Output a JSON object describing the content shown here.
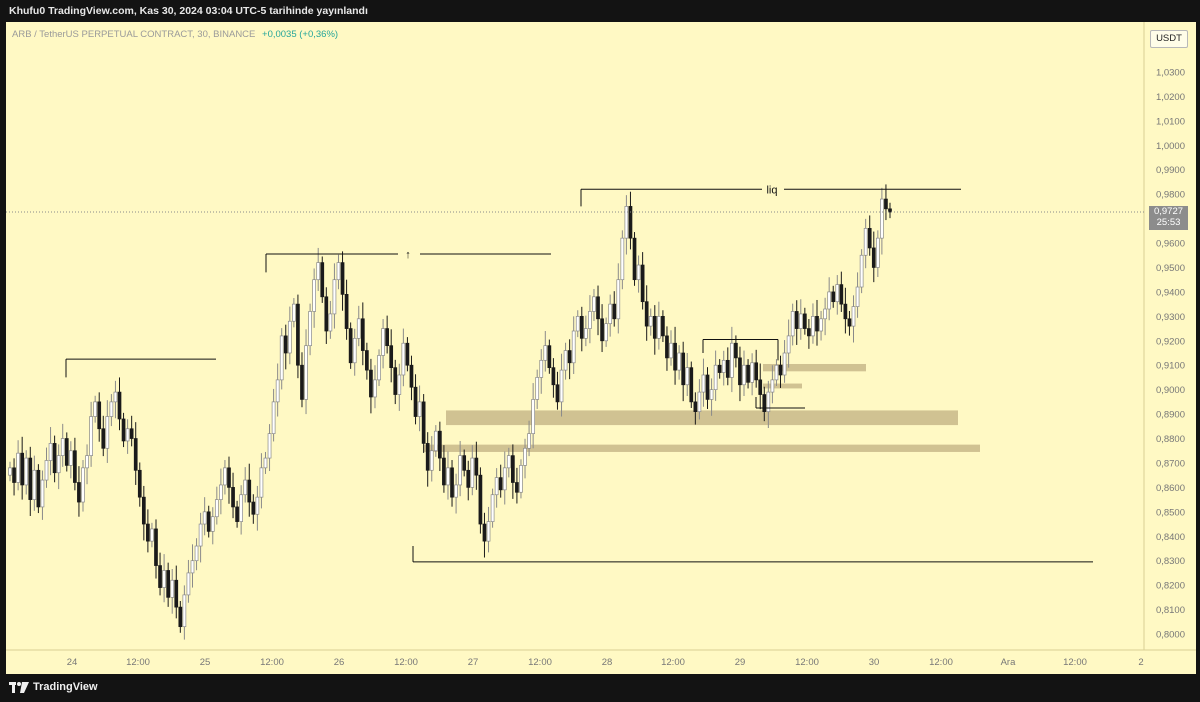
{
  "header": {
    "publish_text": "Khufu0 TradingView.com, Kas 30, 2024 03:04 UTC-5 tarihinde yayınlandı"
  },
  "symbol": {
    "title": "ARB / TetherUS PERPETUAL CONTRACT, 30, BINANCE",
    "change": "+0,0035 (+0,36%)"
  },
  "currency_button": "USDT",
  "last_price": {
    "value": "0,9727",
    "countdown": "25:53"
  },
  "annotations": {
    "liq_label": "liq",
    "arrow_label": "↑"
  },
  "price_axis": {
    "labels": [
      "1,0300",
      "1,0200",
      "1,0100",
      "1,0000",
      "0,9900",
      "0,9800",
      "0,9700",
      "0,9600",
      "0,9500",
      "0,9400",
      "0,9300",
      "0,9200",
      "0,9100",
      "0,9000",
      "0,8900",
      "0,8800",
      "0,8700",
      "0,8600",
      "0,8500",
      "0,8400",
      "0,8300",
      "0,8200",
      "0,8100",
      "0,8000"
    ]
  },
  "time_axis": {
    "labels": [
      "24",
      "12:00",
      "25",
      "12:00",
      "26",
      "12:00",
      "27",
      "12:00",
      "28",
      "12:00",
      "29",
      "12:00",
      "30",
      "12:00",
      "Ara",
      "12:00",
      "2"
    ]
  },
  "footer": {
    "brand": "TradingView"
  },
  "colors": {
    "background": "#fff9c4",
    "candle": "#1a1a1a",
    "wick_light": "#8a8a8a",
    "zone": "#c8b98a",
    "level_line": "#111111",
    "change_green": "#26a69a",
    "price_tag": "#8c8c8c"
  },
  "chart_data": {
    "type": "candlestick",
    "symbol": "ARB / TetherUS PERPETUAL CONTRACT",
    "interval": "30",
    "exchange": "BINANCE",
    "ylim": [
      0.795,
      1.035
    ],
    "last_price": 0.9727,
    "levels": [
      {
        "label": "",
        "price": 0.9125
      },
      {
        "label": "↑",
        "price": 0.9555
      },
      {
        "label": "liq",
        "price": 0.982
      },
      {
        "label": "",
        "price": 0.9205
      },
      {
        "label": "",
        "price": 0.8925
      },
      {
        "label": "",
        "price": 0.8295
      }
    ],
    "zones": [
      {
        "from": 0.8855,
        "to": 0.8915
      },
      {
        "from": 0.8745,
        "to": 0.8775
      },
      {
        "from": 0.9075,
        "to": 0.9105
      },
      {
        "from": 0.9005,
        "to": 0.9025
      }
    ],
    "closes": [
      0.868,
      0.862,
      0.874,
      0.861,
      0.872,
      0.855,
      0.867,
      0.852,
      0.863,
      0.871,
      0.878,
      0.866,
      0.873,
      0.88,
      0.869,
      0.875,
      0.862,
      0.854,
      0.868,
      0.873,
      0.889,
      0.895,
      0.884,
      0.876,
      0.889,
      0.895,
      0.899,
      0.888,
      0.879,
      0.884,
      0.88,
      0.867,
      0.856,
      0.845,
      0.838,
      0.843,
      0.828,
      0.819,
      0.826,
      0.815,
      0.822,
      0.811,
      0.803,
      0.816,
      0.825,
      0.83,
      0.836,
      0.845,
      0.85,
      0.842,
      0.848,
      0.855,
      0.861,
      0.868,
      0.86,
      0.852,
      0.846,
      0.857,
      0.863,
      0.854,
      0.849,
      0.856,
      0.868,
      0.872,
      0.882,
      0.895,
      0.904,
      0.922,
      0.915,
      0.928,
      0.935,
      0.91,
      0.896,
      0.918,
      0.932,
      0.945,
      0.952,
      0.938,
      0.924,
      0.931,
      0.945,
      0.952,
      0.939,
      0.925,
      0.911,
      0.921,
      0.929,
      0.916,
      0.908,
      0.897,
      0.904,
      0.914,
      0.925,
      0.918,
      0.909,
      0.898,
      0.906,
      0.919,
      0.91,
      0.901,
      0.889,
      0.895,
      0.878,
      0.867,
      0.875,
      0.883,
      0.872,
      0.861,
      0.868,
      0.856,
      0.861,
      0.873,
      0.867,
      0.86,
      0.872,
      0.865,
      0.845,
      0.838,
      0.846,
      0.857,
      0.864,
      0.859,
      0.868,
      0.873,
      0.862,
      0.858,
      0.869,
      0.876,
      0.882,
      0.896,
      0.905,
      0.912,
      0.918,
      0.909,
      0.902,
      0.895,
      0.908,
      0.916,
      0.911,
      0.924,
      0.93,
      0.921,
      0.925,
      0.932,
      0.938,
      0.929,
      0.92,
      0.927,
      0.935,
      0.929,
      0.945,
      0.962,
      0.975,
      0.962,
      0.945,
      0.951,
      0.936,
      0.926,
      0.93,
      0.921,
      0.93,
      0.922,
      0.913,
      0.919,
      0.908,
      0.915,
      0.902,
      0.909,
      0.895,
      0.891,
      0.899,
      0.906,
      0.896,
      0.9,
      0.91,
      0.907,
      0.912,
      0.905,
      0.919,
      0.913,
      0.902,
      0.91,
      0.903,
      0.911,
      0.904,
      0.898,
      0.891,
      0.899,
      0.904,
      0.91,
      0.906,
      0.915,
      0.922,
      0.932,
      0.925,
      0.931,
      0.925,
      0.922,
      0.93,
      0.924,
      0.929,
      0.933,
      0.94,
      0.936,
      0.943,
      0.935,
      0.929,
      0.926,
      0.934,
      0.942,
      0.955,
      0.966,
      0.958,
      0.95,
      0.962,
      0.978,
      0.974,
      0.9727
    ]
  }
}
